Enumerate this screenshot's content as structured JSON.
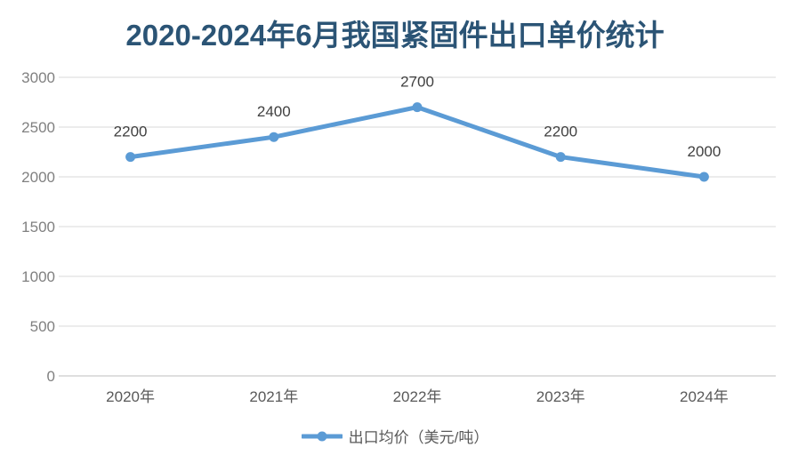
{
  "chart_data": {
    "type": "line",
    "title": "2020-2024年6月我国紧固件出口单价统计",
    "categories": [
      "2020年",
      "2021年",
      "2022年",
      "2023年",
      "2024年"
    ],
    "series": [
      {
        "name": "出口均价（美元/吨）",
        "values": [
          2200,
          2400,
          2700,
          2200,
          2000
        ]
      }
    ],
    "data_labels": [
      "2200",
      "2400",
      "2700",
      "2200",
      "2000"
    ],
    "xlabel": "",
    "ylabel": "",
    "ylim": [
      0,
      3000
    ],
    "yticks": [
      0,
      500,
      1000,
      1500,
      2000,
      2500,
      3000
    ],
    "grid": true,
    "legend_position": "bottom"
  },
  "colors": {
    "title": "#2B5475",
    "line": "#5B9BD5",
    "gridline": "#D9D9D9",
    "axis_line": "#BFBFBF",
    "y_labels": "#808080",
    "x_labels": "#595959",
    "data_labels": "#404040",
    "legend_text": "#595959",
    "background": "#FFFFFF"
  }
}
